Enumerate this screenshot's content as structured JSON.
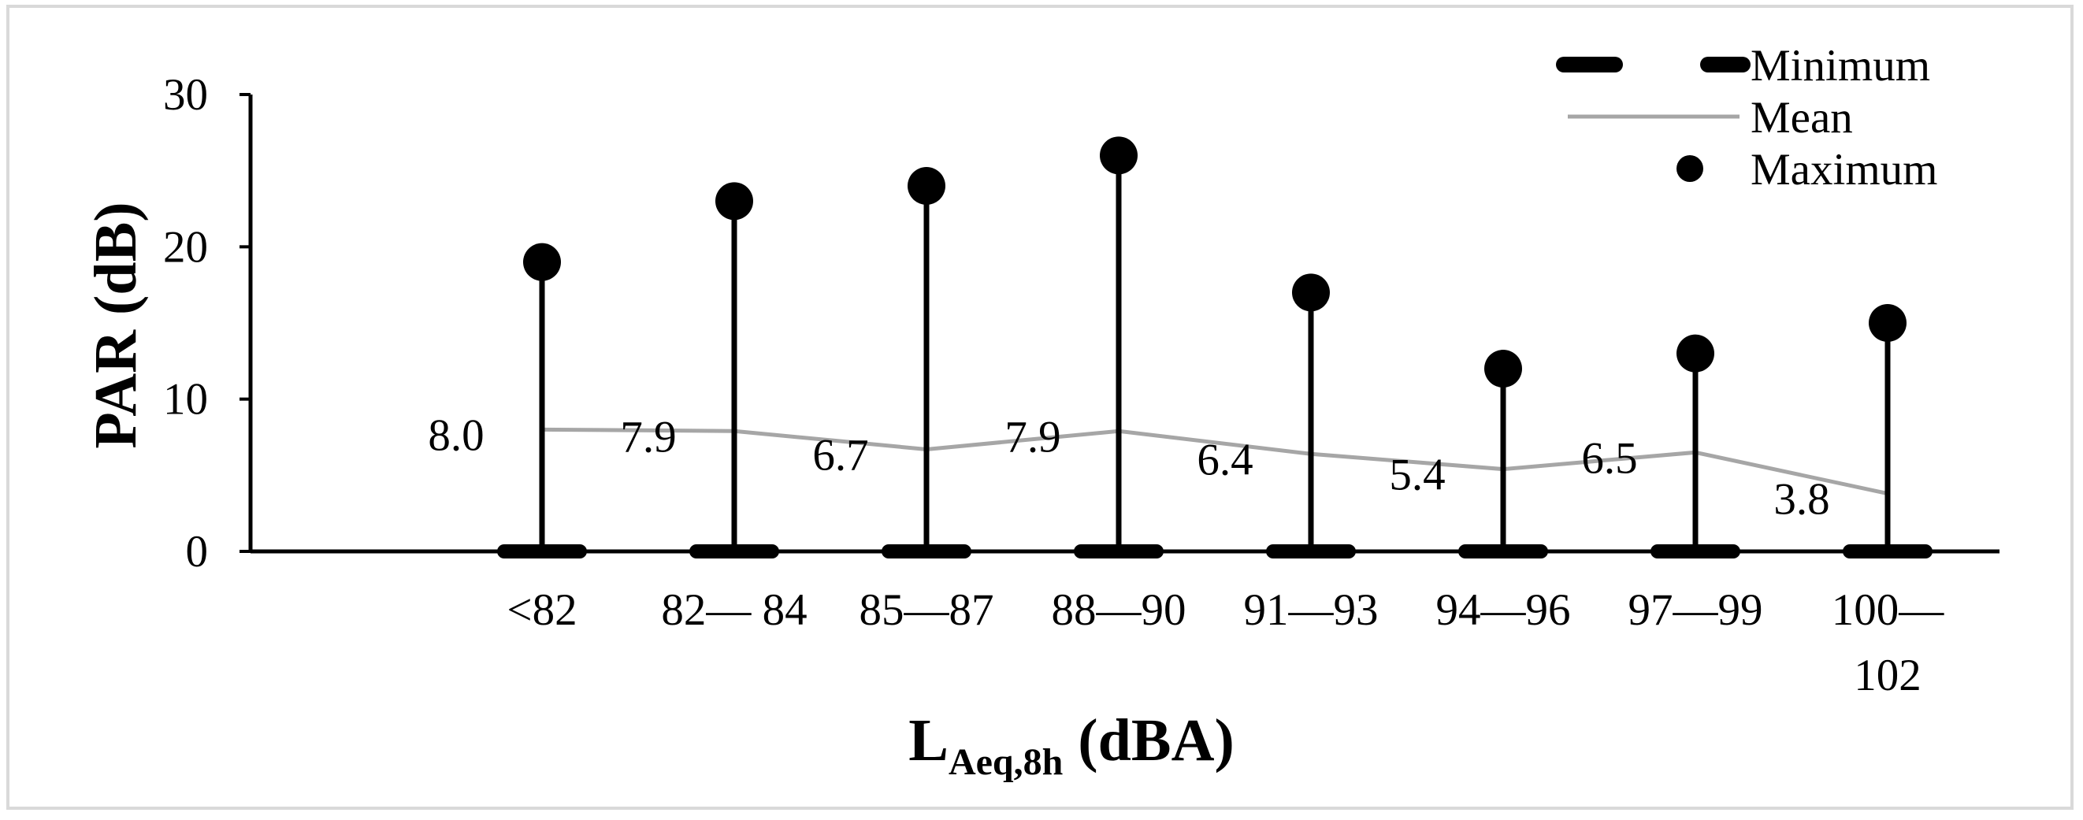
{
  "chart_data": {
    "type": "line",
    "title": "",
    "ylabel": "PAR (dB)",
    "xlabel": {
      "main": "L",
      "subscript": "Aeq,8h",
      "suffix": " (dBA)"
    },
    "ylim": [
      0,
      30
    ],
    "yticks": [
      "0",
      "10",
      "20",
      "30"
    ],
    "grid": false,
    "legend_position": "top-right",
    "categories": [
      [
        "<82"
      ],
      [
        "82— 84"
      ],
      [
        "85—87"
      ],
      [
        "88—90"
      ],
      [
        "91—93"
      ],
      [
        "94—96"
      ],
      [
        "97—99"
      ],
      [
        "100—",
        "102"
      ]
    ],
    "series": [
      {
        "name": "Minimum",
        "values": [
          0,
          0,
          0,
          0,
          0,
          0,
          0,
          0
        ],
        "style": "thick-dash",
        "color": "#000000"
      },
      {
        "name": "Mean",
        "values": [
          8.0,
          7.9,
          6.7,
          7.9,
          6.4,
          5.4,
          6.5,
          3.8
        ],
        "style": "line",
        "color": "#a6a6a6"
      },
      {
        "name": "Maximum",
        "values": [
          19,
          23,
          24,
          26,
          17,
          12,
          13,
          15
        ],
        "style": "dot",
        "color": "#000000"
      }
    ],
    "mean_labels": [
      "8.0",
      "7.9",
      "6.7",
      "7.9",
      "6.4",
      "5.4",
      "6.5",
      "3.8"
    ]
  }
}
